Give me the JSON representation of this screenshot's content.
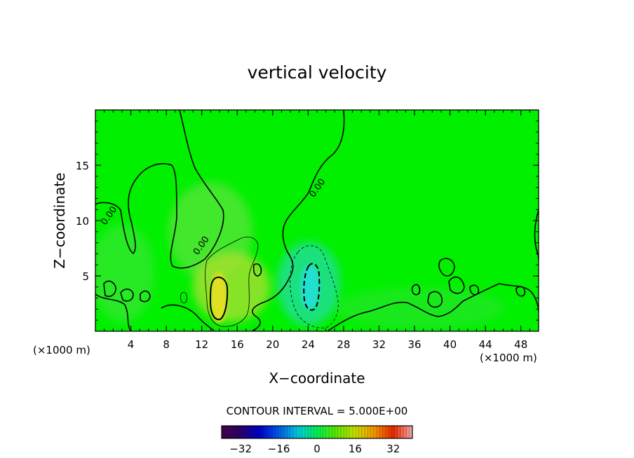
{
  "chart_data": {
    "type": "heatmap",
    "title": "vertical velocity",
    "xlabel": "X−coordinate",
    "ylabel": "Z−coordinate",
    "x_unit_left": "(×1000 m)",
    "x_unit_right": "(×1000 m)",
    "xlim": [
      0,
      50
    ],
    "ylim": [
      0,
      20
    ],
    "x_ticks": [
      4,
      8,
      12,
      16,
      20,
      24,
      28,
      32,
      36,
      40,
      44,
      48
    ],
    "y_ticks": [
      5,
      10,
      15
    ],
    "contour_labels": [
      {
        "text": "0.00",
        "x": 1.8,
        "z": 10.3
      },
      {
        "text": "0.00",
        "x": 12.2,
        "z": 7.6
      },
      {
        "text": "0.00",
        "x": 25.3,
        "z": 12.8
      }
    ],
    "contour_interval_text": "CONTOUR INTERVAL = 5.000E+00",
    "colorbar": {
      "range": [
        -40,
        40
      ],
      "ticks": [
        "−32",
        "−16",
        "0",
        "16",
        "32"
      ],
      "tick_values": [
        -32,
        -16,
        0,
        16,
        32
      ]
    },
    "features": [
      {
        "name": "updraft",
        "x": 14,
        "z": 3.5,
        "peak": 13
      },
      {
        "name": "downdraft",
        "x": 24,
        "z": 3.5,
        "peak": -11
      }
    ],
    "background_color": "#00f000"
  }
}
